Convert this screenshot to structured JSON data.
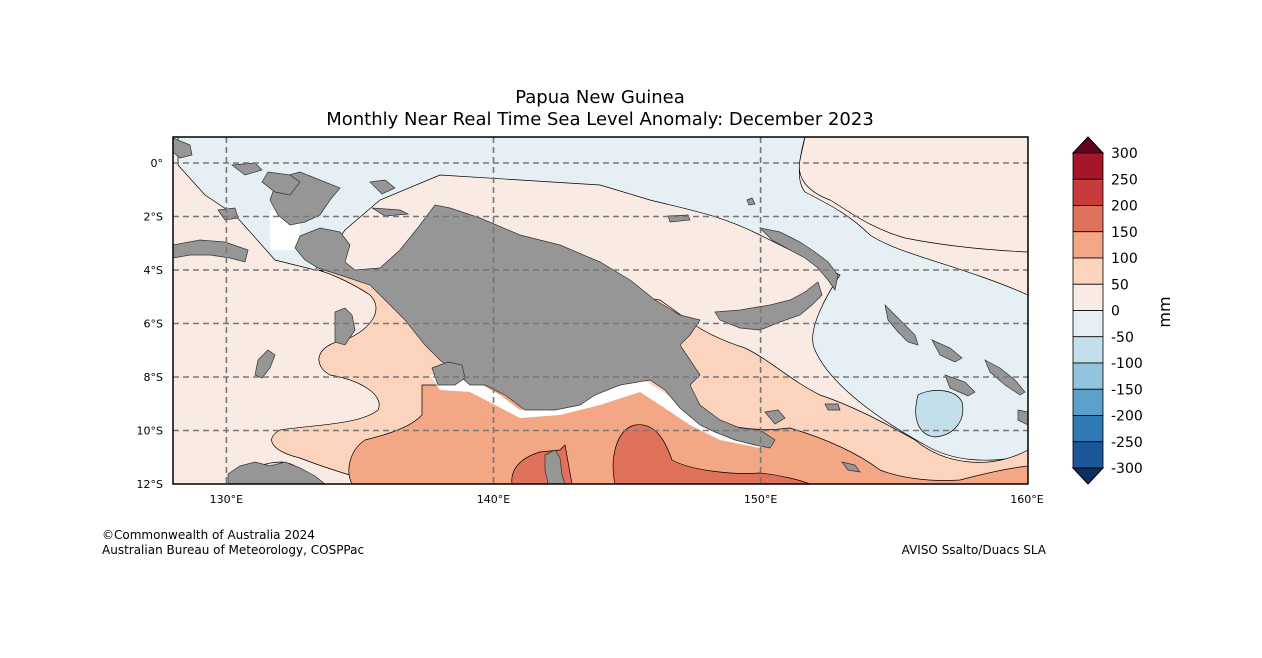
{
  "title": {
    "line1": "Papua New Guinea",
    "line2": "Monthly Near Real Time Sea Level Anomaly: December 2023"
  },
  "map": {
    "lon_labels": [
      "130°E",
      "140°E",
      "150°E",
      "160°E"
    ],
    "lat_labels": [
      "0°",
      "2°S",
      "4°S",
      "6°S",
      "8°S",
      "10°S",
      "12°S"
    ],
    "land_color": "#969696"
  },
  "colorbar": {
    "unit": "mm",
    "tick_labels": [
      "300",
      "250",
      "200",
      "150",
      "100",
      "50",
      "0",
      "-50",
      "-100",
      "-150",
      "-200",
      "-250",
      "-300"
    ],
    "colors_top_to_bottom": [
      "#a5162a",
      "#c73b3c",
      "#e0715a",
      "#f4a784",
      "#fcd3bc",
      "#f9ebe3",
      "#e6eff4",
      "#c4dfec",
      "#93c4de",
      "#5ba1cb",
      "#2f79b5",
      "#1b5799"
    ],
    "over_color": "#67001f",
    "under_color": "#0d3060"
  },
  "credits": {
    "left_line1": "©Commonwealth of Australia 2024",
    "left_line2": "Australian Bureau of Meteorology, COSPPac",
    "right": "AVISO Ssalto/Duacs SLA"
  }
}
